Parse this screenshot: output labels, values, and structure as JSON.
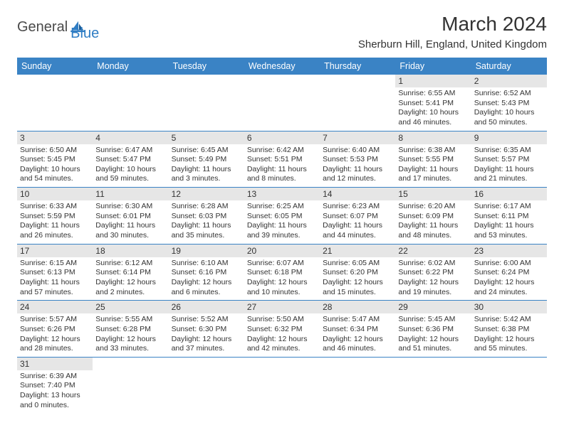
{
  "logo": {
    "general": "General",
    "blue": "Blue"
  },
  "title": "March 2024",
  "location": "Sherburn Hill, England, United Kingdom",
  "header_bg": "#3a83c5",
  "days_of_week": [
    "Sunday",
    "Monday",
    "Tuesday",
    "Wednesday",
    "Thursday",
    "Friday",
    "Saturday"
  ],
  "weeks": [
    [
      null,
      null,
      null,
      null,
      null,
      {
        "n": "1",
        "sunrise": "6:55 AM",
        "sunset": "5:41 PM",
        "daylight": "10 hours and 46 minutes."
      },
      {
        "n": "2",
        "sunrise": "6:52 AM",
        "sunset": "5:43 PM",
        "daylight": "10 hours and 50 minutes."
      }
    ],
    [
      {
        "n": "3",
        "sunrise": "6:50 AM",
        "sunset": "5:45 PM",
        "daylight": "10 hours and 54 minutes."
      },
      {
        "n": "4",
        "sunrise": "6:47 AM",
        "sunset": "5:47 PM",
        "daylight": "10 hours and 59 minutes."
      },
      {
        "n": "5",
        "sunrise": "6:45 AM",
        "sunset": "5:49 PM",
        "daylight": "11 hours and 3 minutes."
      },
      {
        "n": "6",
        "sunrise": "6:42 AM",
        "sunset": "5:51 PM",
        "daylight": "11 hours and 8 minutes."
      },
      {
        "n": "7",
        "sunrise": "6:40 AM",
        "sunset": "5:53 PM",
        "daylight": "11 hours and 12 minutes."
      },
      {
        "n": "8",
        "sunrise": "6:38 AM",
        "sunset": "5:55 PM",
        "daylight": "11 hours and 17 minutes."
      },
      {
        "n": "9",
        "sunrise": "6:35 AM",
        "sunset": "5:57 PM",
        "daylight": "11 hours and 21 minutes."
      }
    ],
    [
      {
        "n": "10",
        "sunrise": "6:33 AM",
        "sunset": "5:59 PM",
        "daylight": "11 hours and 26 minutes."
      },
      {
        "n": "11",
        "sunrise": "6:30 AM",
        "sunset": "6:01 PM",
        "daylight": "11 hours and 30 minutes."
      },
      {
        "n": "12",
        "sunrise": "6:28 AM",
        "sunset": "6:03 PM",
        "daylight": "11 hours and 35 minutes."
      },
      {
        "n": "13",
        "sunrise": "6:25 AM",
        "sunset": "6:05 PM",
        "daylight": "11 hours and 39 minutes."
      },
      {
        "n": "14",
        "sunrise": "6:23 AM",
        "sunset": "6:07 PM",
        "daylight": "11 hours and 44 minutes."
      },
      {
        "n": "15",
        "sunrise": "6:20 AM",
        "sunset": "6:09 PM",
        "daylight": "11 hours and 48 minutes."
      },
      {
        "n": "16",
        "sunrise": "6:17 AM",
        "sunset": "6:11 PM",
        "daylight": "11 hours and 53 minutes."
      }
    ],
    [
      {
        "n": "17",
        "sunrise": "6:15 AM",
        "sunset": "6:13 PM",
        "daylight": "11 hours and 57 minutes."
      },
      {
        "n": "18",
        "sunrise": "6:12 AM",
        "sunset": "6:14 PM",
        "daylight": "12 hours and 2 minutes."
      },
      {
        "n": "19",
        "sunrise": "6:10 AM",
        "sunset": "6:16 PM",
        "daylight": "12 hours and 6 minutes."
      },
      {
        "n": "20",
        "sunrise": "6:07 AM",
        "sunset": "6:18 PM",
        "daylight": "12 hours and 10 minutes."
      },
      {
        "n": "21",
        "sunrise": "6:05 AM",
        "sunset": "6:20 PM",
        "daylight": "12 hours and 15 minutes."
      },
      {
        "n": "22",
        "sunrise": "6:02 AM",
        "sunset": "6:22 PM",
        "daylight": "12 hours and 19 minutes."
      },
      {
        "n": "23",
        "sunrise": "6:00 AM",
        "sunset": "6:24 PM",
        "daylight": "12 hours and 24 minutes."
      }
    ],
    [
      {
        "n": "24",
        "sunrise": "5:57 AM",
        "sunset": "6:26 PM",
        "daylight": "12 hours and 28 minutes."
      },
      {
        "n": "25",
        "sunrise": "5:55 AM",
        "sunset": "6:28 PM",
        "daylight": "12 hours and 33 minutes."
      },
      {
        "n": "26",
        "sunrise": "5:52 AM",
        "sunset": "6:30 PM",
        "daylight": "12 hours and 37 minutes."
      },
      {
        "n": "27",
        "sunrise": "5:50 AM",
        "sunset": "6:32 PM",
        "daylight": "12 hours and 42 minutes."
      },
      {
        "n": "28",
        "sunrise": "5:47 AM",
        "sunset": "6:34 PM",
        "daylight": "12 hours and 46 minutes."
      },
      {
        "n": "29",
        "sunrise": "5:45 AM",
        "sunset": "6:36 PM",
        "daylight": "12 hours and 51 minutes."
      },
      {
        "n": "30",
        "sunrise": "5:42 AM",
        "sunset": "6:38 PM",
        "daylight": "12 hours and 55 minutes."
      }
    ],
    [
      {
        "n": "31",
        "sunrise": "6:39 AM",
        "sunset": "7:40 PM",
        "daylight": "13 hours and 0 minutes."
      },
      null,
      null,
      null,
      null,
      null,
      null
    ]
  ],
  "labels": {
    "sunrise": "Sunrise: ",
    "sunset": "Sunset: ",
    "daylight": "Daylight: "
  }
}
